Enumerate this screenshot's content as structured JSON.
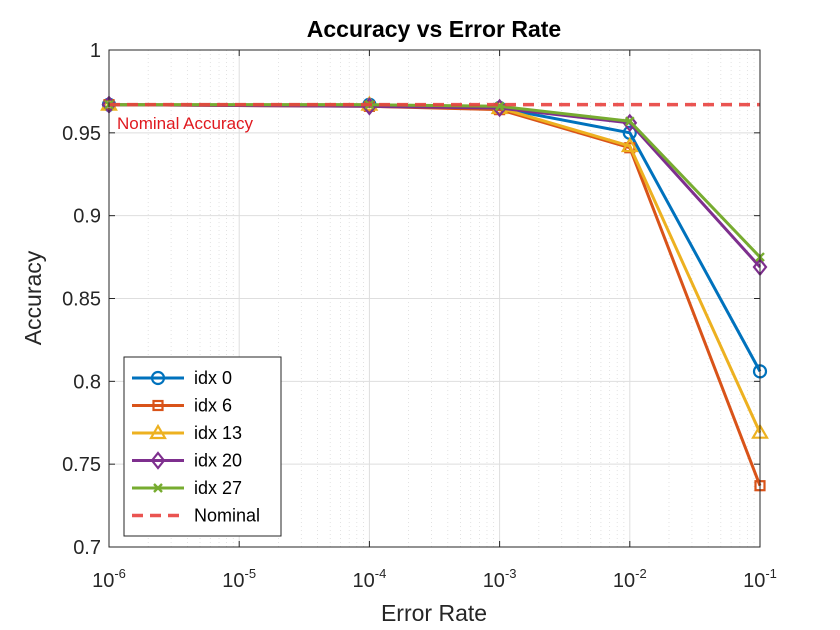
{
  "chart_data": {
    "type": "line",
    "title": "Accuracy vs Error Rate",
    "xlabel": "Error Rate",
    "ylabel": "Accuracy",
    "xscale": "log",
    "xlim": [
      1e-06,
      0.1
    ],
    "ylim": [
      0.7,
      1.0
    ],
    "grid": true,
    "minor_grid": true,
    "legend_position": "bottom-left",
    "x_ticks": [
      {
        "base": "10",
        "exp": "-6"
      },
      {
        "base": "10",
        "exp": "-5"
      },
      {
        "base": "10",
        "exp": "-4"
      },
      {
        "base": "10",
        "exp": "-3"
      },
      {
        "base": "10",
        "exp": "-2"
      },
      {
        "base": "10",
        "exp": "-1"
      }
    ],
    "y_ticks": [
      "0.7",
      "0.75",
      "0.8",
      "0.85",
      "0.9",
      "0.95",
      "1"
    ],
    "x": [
      1e-06,
      0.0001,
      0.001,
      0.01,
      0.1
    ],
    "series": [
      {
        "name": "idx 0",
        "color": "#0072BD",
        "marker": "circle",
        "values": [
          0.967,
          0.967,
          0.965,
          0.95,
          0.806
        ]
      },
      {
        "name": "idx 6",
        "color": "#D95319",
        "marker": "square",
        "values": [
          0.967,
          0.966,
          0.964,
          0.941,
          0.737
        ]
      },
      {
        "name": "idx 13",
        "color": "#EDB120",
        "marker": "triangle",
        "values": [
          0.967,
          0.967,
          0.965,
          0.942,
          0.769
        ]
      },
      {
        "name": "idx 20",
        "color": "#7E2F8E",
        "marker": "diamond",
        "values": [
          0.967,
          0.966,
          0.965,
          0.956,
          0.869
        ]
      },
      {
        "name": "idx 27",
        "color": "#77AC30",
        "marker": "x",
        "values": [
          0.967,
          0.967,
          0.966,
          0.957,
          0.875
        ]
      }
    ],
    "reference_line": {
      "name": "Nominal",
      "value": 0.967,
      "color": "#E8423F",
      "style": "dashed"
    },
    "annotations": [
      {
        "text": "Nominal Accuracy",
        "color": "#E0191F"
      }
    ]
  }
}
